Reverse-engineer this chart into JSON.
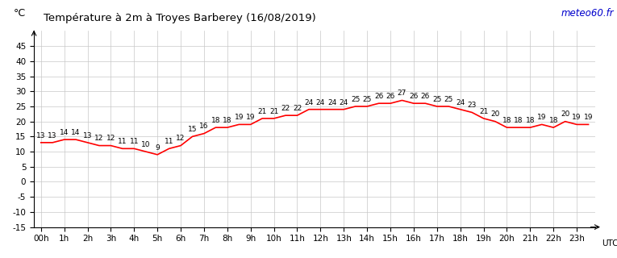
{
  "title": "Température à 2m à Troyes Barberey (16/08/2019)",
  "ylabel": "°C",
  "xlabel_right": "UTC",
  "watermark": "meteo60.fr",
  "hours": [
    "00h",
    "1h",
    "2h",
    "3h",
    "4h",
    "5h",
    "6h",
    "7h",
    "8h",
    "9h",
    "10h",
    "11h",
    "12h",
    "13h",
    "14h",
    "15h",
    "16h",
    "17h",
    "18h",
    "19h",
    "20h",
    "21h",
    "22h",
    "23h"
  ],
  "temperatures": [
    13,
    13,
    14,
    14,
    13,
    12,
    12,
    11,
    11,
    10,
    9,
    11,
    12,
    15,
    16,
    18,
    18,
    19,
    19,
    21,
    21,
    22,
    22,
    24,
    24,
    24,
    24,
    25,
    25,
    26,
    26,
    27,
    26,
    26,
    25,
    25,
    24,
    23,
    21,
    20,
    18,
    18,
    18,
    19,
    18,
    20,
    19,
    19
  ],
  "ylim": [
    -15,
    50
  ],
  "yticks": [
    -15,
    -10,
    -5,
    0,
    5,
    10,
    15,
    20,
    25,
    30,
    35,
    40,
    45
  ],
  "line_color": "#ff0000",
  "background_color": "#ffffff",
  "grid_color": "#c8c8c8",
  "title_color": "#000000",
  "watermark_color": "#0000cc",
  "label_fontsize": 7.5,
  "title_fontsize": 9.5,
  "annotation_fontsize": 6.5
}
